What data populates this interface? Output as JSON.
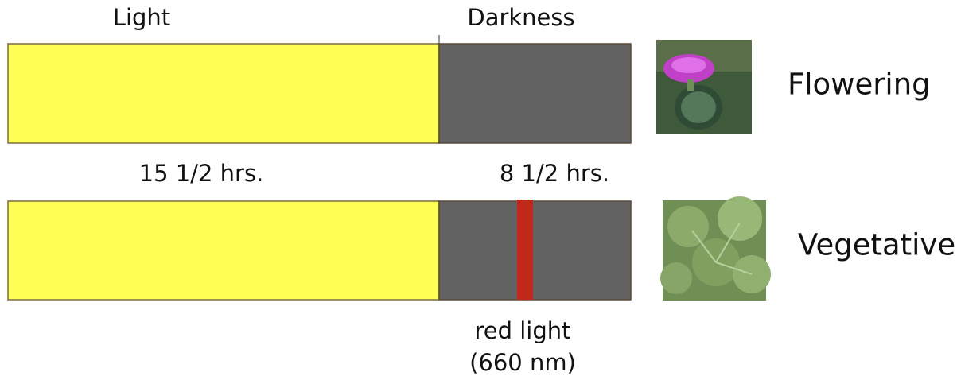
{
  "top_bar": {
    "left_label": "Light",
    "right_label": "Darkness",
    "result": "Flowering"
  },
  "durations": {
    "light": "15 1/2 hrs.",
    "dark": "8 1/2 hrs."
  },
  "bottom_bar": {
    "result": "Vegetative",
    "interruption": [
      "red light",
      "(660 nm)"
    ]
  }
}
